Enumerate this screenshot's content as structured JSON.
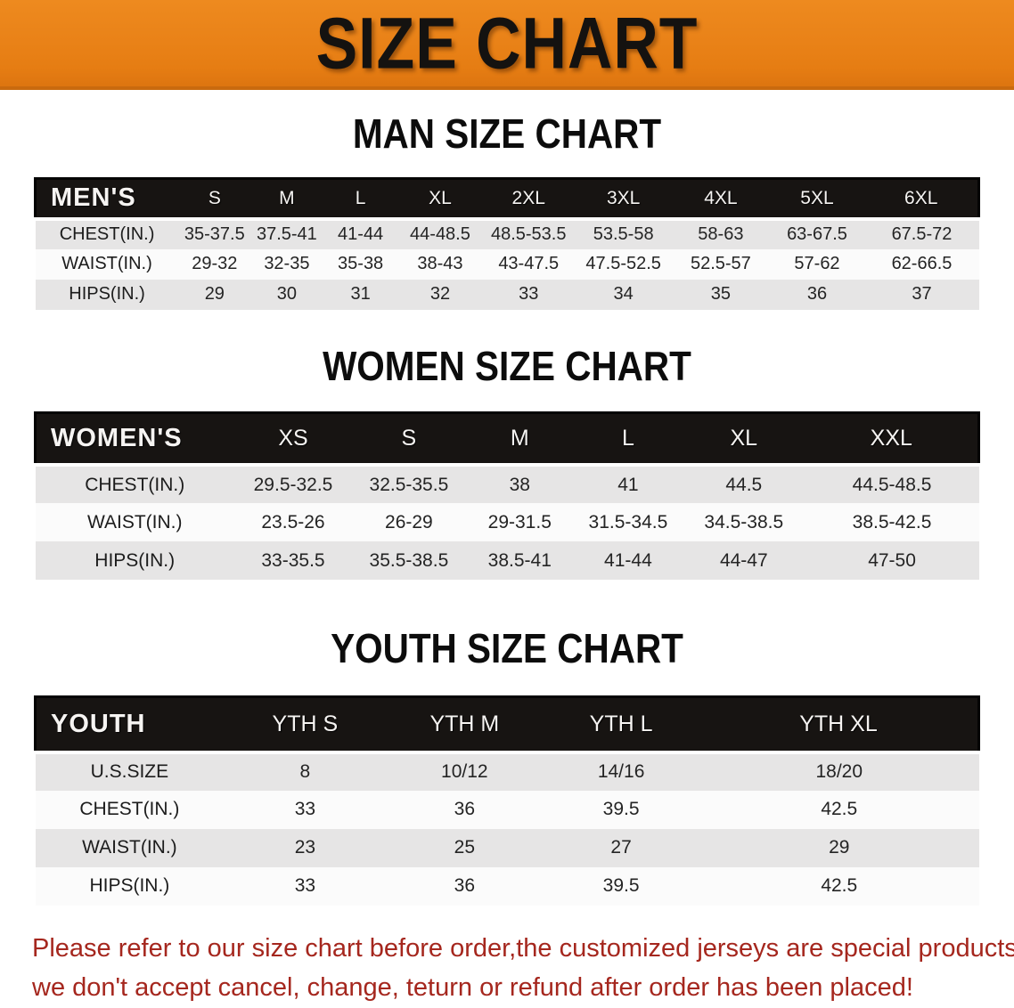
{
  "banner": {
    "title": "SIZE CHART",
    "bg_color": "#e67d13",
    "text_color": "#141210"
  },
  "sections": {
    "men": {
      "heading": "MAN SIZE CHART",
      "table": {
        "header": [
          "MEN'S",
          "S",
          "M",
          "L",
          "XL",
          "2XL",
          "3XL",
          "4XL",
          "5XL",
          "6XL"
        ],
        "rows": [
          [
            "CHEST(IN.)",
            "35-37.5",
            "37.5-41",
            "41-44",
            "44-48.5",
            "48.5-53.5",
            "53.5-58",
            "58-63",
            "63-67.5",
            "67.5-72"
          ],
          [
            "WAIST(IN.)",
            "29-32",
            "32-35",
            "35-38",
            "38-43",
            "43-47.5",
            "47.5-52.5",
            "52.5-57",
            "57-62",
            "62-66.5"
          ],
          [
            "HIPS(IN.)",
            "29",
            "30",
            "31",
            "32",
            "33",
            "34",
            "35",
            "36",
            "37"
          ]
        ]
      }
    },
    "women": {
      "heading": "WOMEN SIZE CHART",
      "table": {
        "header": [
          "WOMEN'S",
          "XS",
          "S",
          "M",
          "L",
          "XL",
          "XXL"
        ],
        "rows": [
          [
            "CHEST(IN.)",
            "29.5-32.5",
            "32.5-35.5",
            "38",
            "41",
            "44.5",
            "44.5-48.5"
          ],
          [
            "WAIST(IN.)",
            "23.5-26",
            "26-29",
            "29-31.5",
            "31.5-34.5",
            "34.5-38.5",
            "38.5-42.5"
          ],
          [
            "HIPS(IN.)",
            "33-35.5",
            "35.5-38.5",
            "38.5-41",
            "41-44",
            "44-47",
            "47-50"
          ]
        ]
      }
    },
    "youth": {
      "heading": "YOUTH SIZE CHART",
      "table": {
        "header": [
          "YOUTH",
          "YTH S",
          "YTH M",
          "YTH L",
          "YTH XL"
        ],
        "rows": [
          [
            "U.S.SIZE",
            "8",
            "10/12",
            "14/16",
            "18/20"
          ],
          [
            "CHEST(IN.)",
            "33",
            "36",
            "39.5",
            "42.5"
          ],
          [
            "WAIST(IN.)",
            "23",
            "25",
            "27",
            "29"
          ],
          [
            "HIPS(IN.)",
            "33",
            "36",
            "39.5",
            "42.5"
          ]
        ]
      }
    }
  },
  "footer": {
    "line1": "Please refer to our size chart before order,the customized jerseys are special products,",
    "line2": "we don't accept cancel, change, teturn or refund after order has been placed!",
    "text_color": "#a5271e"
  }
}
